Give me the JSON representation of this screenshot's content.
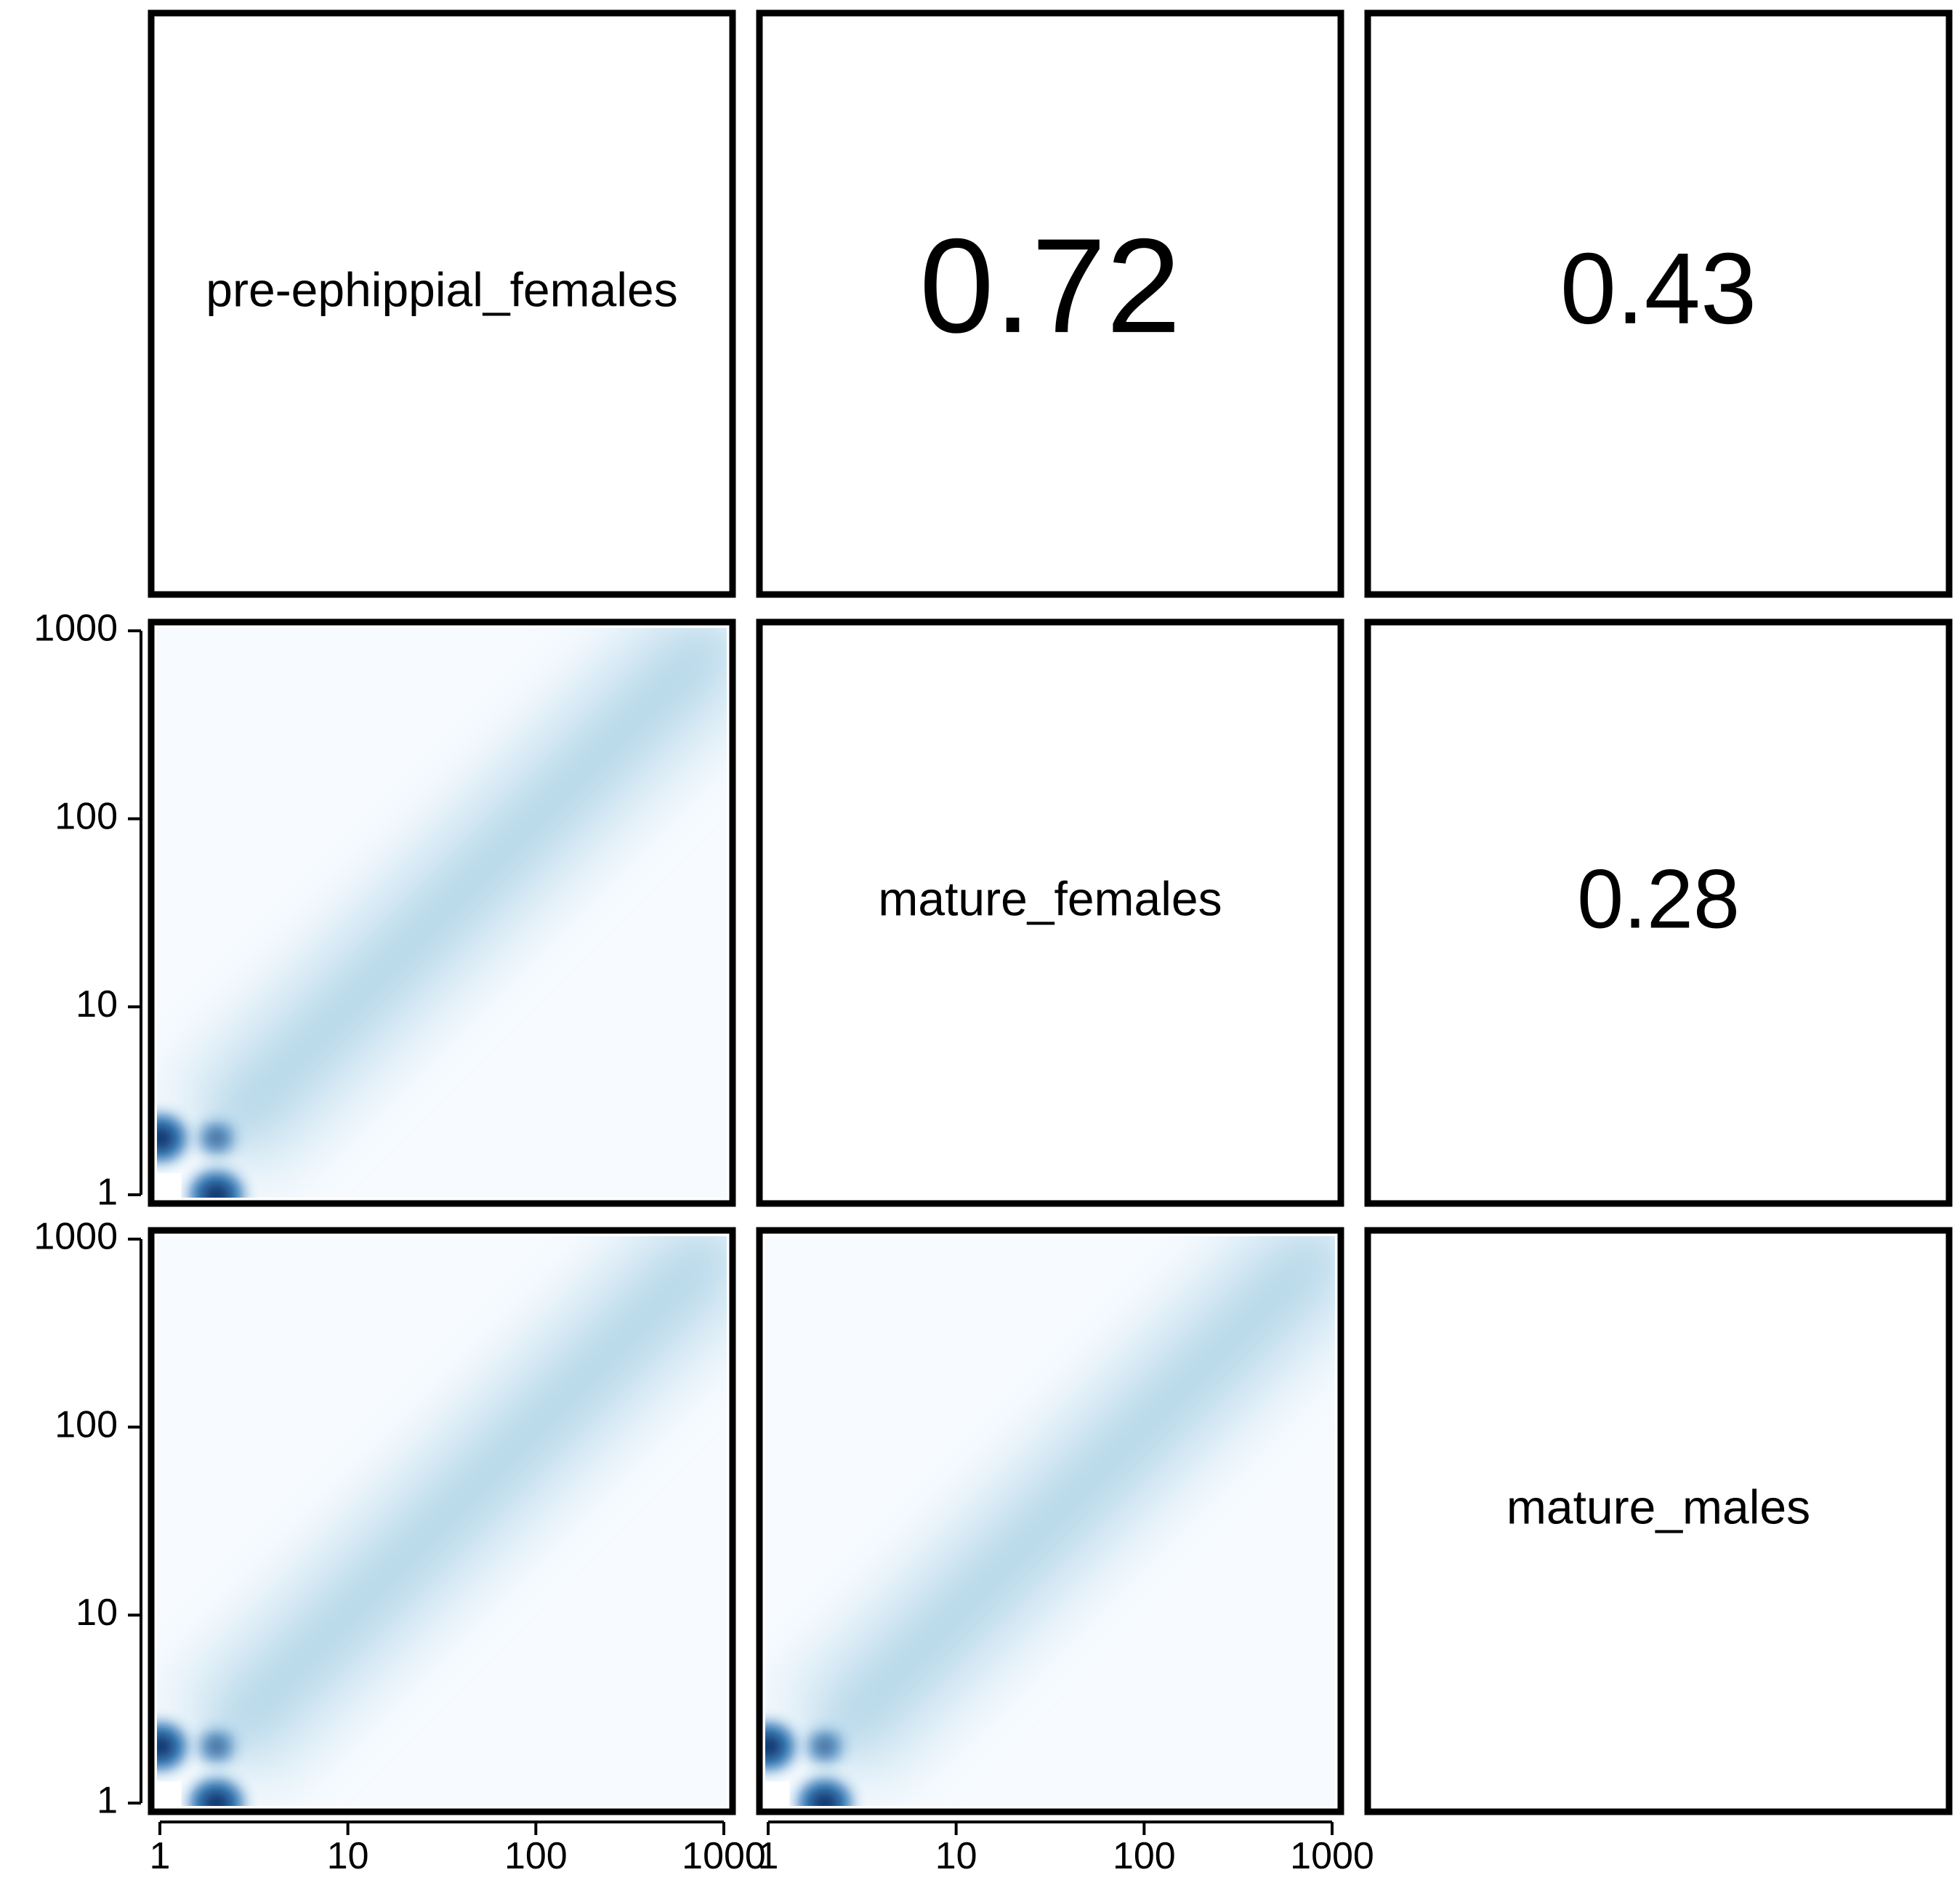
{
  "colors": {
    "frame": "#000000",
    "density_low": "#f7fbff",
    "density_mid": "#9ecae1",
    "density_high": "#08306b"
  },
  "chart_data": {
    "type": "scatter-matrix",
    "variables": [
      "pre-ephippial_females",
      "mature_females",
      "mature_males"
    ],
    "axis_scale": "log",
    "axis_range": [
      1,
      1000
    ],
    "tick_labels": [
      "1",
      "10",
      "100",
      "1000"
    ],
    "tick_values": [
      1,
      10,
      100,
      1000
    ],
    "correlations": [
      {
        "row": "pre-ephippial_females",
        "col": "mature_females",
        "value": "0.72"
      },
      {
        "row": "pre-ephippial_females",
        "col": "mature_males",
        "value": "0.43"
      },
      {
        "row": "mature_females",
        "col": "mature_males",
        "value": "0.28"
      }
    ],
    "density_panels": [
      {
        "x": "pre-ephippial_females",
        "y": "mature_females",
        "hotspots": [
          [
            1,
            2
          ],
          [
            2,
            1
          ],
          [
            2,
            2
          ]
        ]
      },
      {
        "x": "pre-ephippial_females",
        "y": "mature_males",
        "hotspots": [
          [
            1,
            2
          ],
          [
            2,
            1
          ],
          [
            2,
            2
          ]
        ]
      },
      {
        "x": "mature_females",
        "y": "mature_males",
        "hotspots": [
          [
            1,
            2
          ],
          [
            2,
            1
          ],
          [
            2,
            2
          ]
        ]
      }
    ]
  }
}
